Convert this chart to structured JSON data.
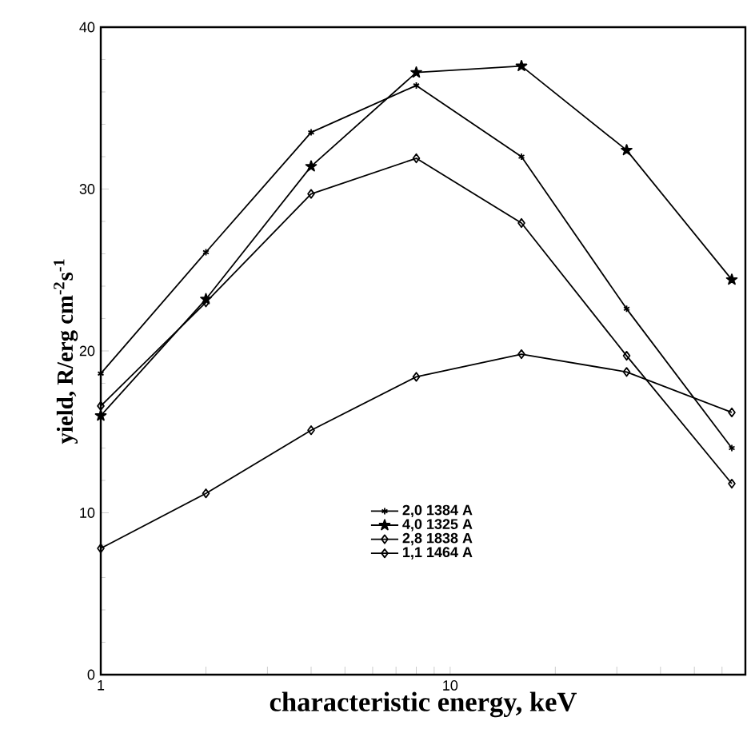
{
  "chart_data": {
    "type": "line",
    "xlabel": "characteristic energy, keV",
    "ylabel": "yield, R/erg cm$^{-2}$s$^{-1}$",
    "x": [
      1,
      2,
      4,
      8,
      16,
      32,
      64
    ],
    "series": [
      {
        "name": "2,0   1384 A",
        "color": "#000000",
        "marker": "cross",
        "values": [
          18.6,
          26.1,
          33.5,
          36.4,
          32.0,
          22.6,
          14.0
        ]
      },
      {
        "name": "4,0   1325 A",
        "color": "#000000",
        "marker": "star",
        "values": [
          16.0,
          23.2,
          31.4,
          37.2,
          37.6,
          32.4,
          24.4
        ]
      },
      {
        "name": "2,8   1838 A",
        "color": "#000000",
        "marker": "diamond",
        "values": [
          7.8,
          11.2,
          15.1,
          18.4,
          19.8,
          18.7,
          16.2
        ]
      },
      {
        "name": "1,1   1464 A",
        "color": "#000000",
        "marker": "diamond",
        "values": [
          16.6,
          23.0,
          29.7,
          31.9,
          27.9,
          19.7,
          11.8
        ]
      }
    ],
    "log": "x",
    "xlim": [
      1,
      70
    ],
    "xticks": [
      1,
      {
        "value": 2,
        "label": null
      },
      {
        "value": 3,
        "label": null
      },
      {
        "value": 4,
        "label": null
      },
      {
        "value": 5,
        "label": null
      },
      {
        "value": 6,
        "label": null
      },
      {
        "value": 7,
        "label": null
      },
      {
        "value": 8,
        "label": null
      },
      {
        "value": 9,
        "label": null
      },
      10,
      {
        "value": 20,
        "label": null
      },
      {
        "value": 30,
        "label": null
      },
      {
        "value": 40,
        "label": null
      },
      {
        "value": 50,
        "label": null
      },
      {
        "value": 60,
        "label": null
      }
    ],
    "ylim": [
      0,
      40
    ],
    "yticks": [
      0,
      10,
      20,
      30,
      40
    ],
    "grid": false,
    "legend": "bottom",
    "line_style": "solid"
  }
}
